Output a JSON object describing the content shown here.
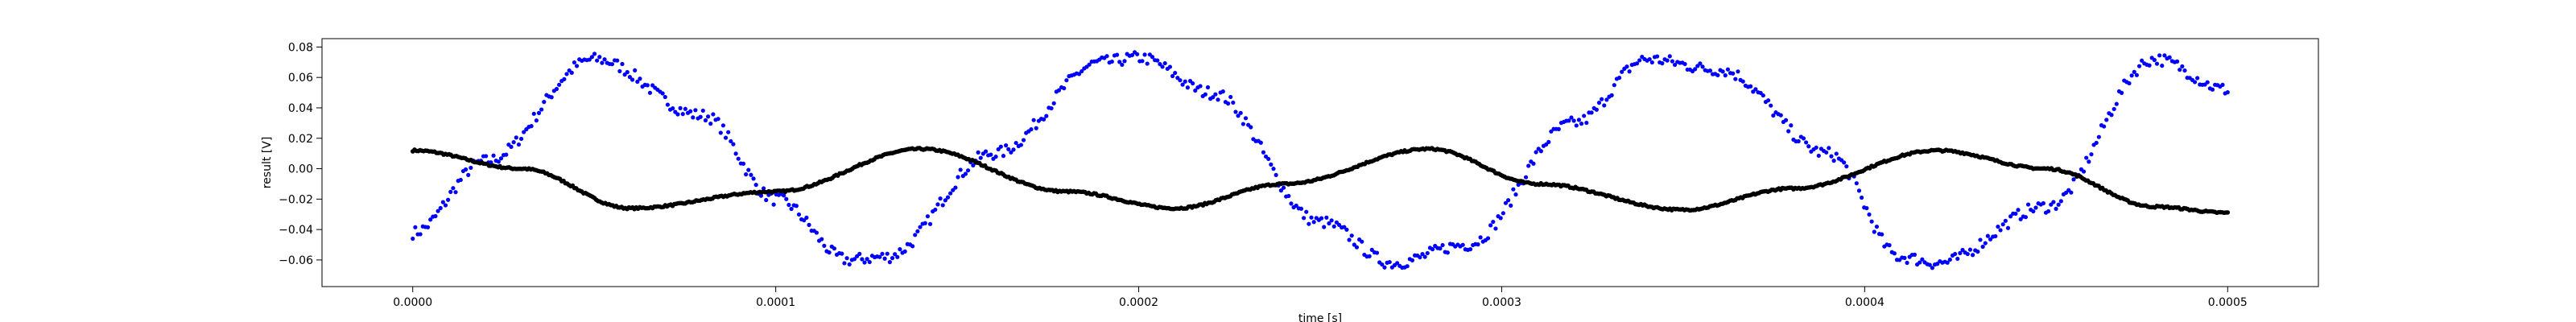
{
  "chart_data": {
    "type": "scatter",
    "title": "",
    "xlabel": "time [s]",
    "ylabel": "result [V]",
    "xlim": [
      -2.5e-05,
      0.000525
    ],
    "ylim": [
      -0.0775,
      0.0855
    ],
    "x_ticks": [
      0,
      0.0001,
      0.0002,
      0.0003,
      0.0004,
      0.0005
    ],
    "x_tick_labels": [
      "0.0000",
      "0.0001",
      "0.0002",
      "0.0003",
      "0.0004",
      "0.0005"
    ],
    "y_ticks": [
      -0.06,
      -0.04,
      -0.02,
      0.0,
      0.02,
      0.04,
      0.06,
      0.08
    ],
    "y_tick_labels": [
      "−0.06",
      "−0.04",
      "−0.02",
      "0.00",
      "0.02",
      "0.04",
      "0.06",
      "0.08"
    ],
    "grid": false,
    "legend": "none",
    "series": [
      {
        "color": "#0000ff",
        "x": [
          0,
          2e-05,
          5e-05,
          8e-05,
          0.0001,
          0.00012,
          0.00013,
          0.00016,
          0.00019,
          0.0002,
          0.00022,
          0.00025,
          0.00027,
          0.00029,
          0.00032,
          0.00034,
          0.00036,
          0.00039,
          0.00041,
          0.00042,
          0.00045,
          0.00048,
          0.0005
        ],
        "y": [
          -0.042,
          0.005,
          0.072,
          0.035,
          -0.02,
          -0.06,
          -0.058,
          0.01,
          0.07,
          0.073,
          0.05,
          -0.035,
          -0.062,
          -0.05,
          0.03,
          0.072,
          0.065,
          0.01,
          -0.058,
          -0.062,
          -0.025,
          0.072,
          0.052
        ]
      },
      {
        "color": "#000000",
        "x": [
          0,
          3e-05,
          6e-05,
          0.0001,
          0.00014,
          0.00018,
          0.00021,
          0.00024,
          0.00028,
          0.00031,
          0.00035,
          0.00038,
          0.00042,
          0.00045,
          0.00048,
          0.0005
        ],
        "y": [
          0.012,
          0.0,
          -0.026,
          -0.015,
          0.013,
          -0.015,
          -0.026,
          -0.01,
          0.013,
          -0.01,
          -0.027,
          -0.013,
          0.012,
          0.0,
          -0.025,
          -0.029
        ]
      }
    ]
  }
}
